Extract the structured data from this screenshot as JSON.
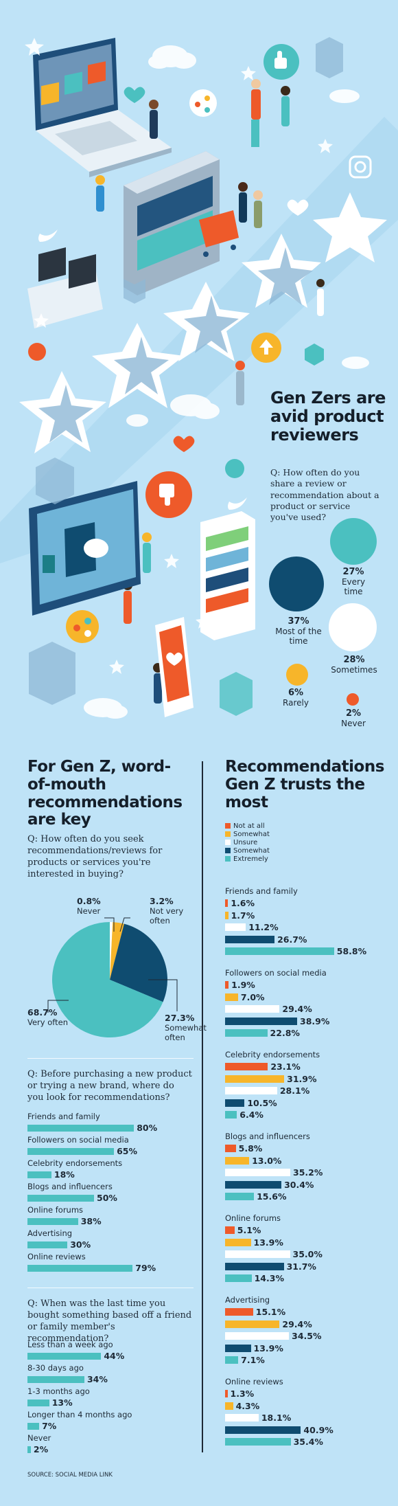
{
  "colors": {
    "background": "#bfe3f7",
    "dark_blue": "#0f4c70",
    "teal": "#4bc0c0",
    "orange": "#ee5a2a",
    "yellow": "#f7b52a",
    "white": "#ffffff"
  },
  "hero": {
    "title": "Gen Zers are avid product reviewers",
    "question": "Q: How often do you share a review or recommendation about a product or service you've used?"
  },
  "left": {
    "title": "For Gen Z, word-of-mouth recommendations are key",
    "q1": "Q: How often do you seek recommendations/reviews for products or services you're interested in buying?",
    "q2": "Q: Before purchasing a new product or trying a new brand, where do you look for recommendations?",
    "q3": "Q: When was the last time you bought something based off a friend or family member's recommendation?"
  },
  "right": {
    "title": "Recommendations Gen Z trusts the most"
  },
  "source": "SOURCE: SOCIAL MEDIA LINK",
  "chart_data": [
    {
      "type": "bubble",
      "title": "Gen Zers are avid product reviewers",
      "categories": [
        "Every time",
        "Most of the time",
        "Sometimes",
        "Rarely",
        "Never"
      ],
      "values": [
        27,
        37,
        28,
        6,
        2
      ],
      "labels": [
        "27%",
        "37%",
        "28%",
        "6%",
        "2%"
      ]
    },
    {
      "type": "pie",
      "title": "For Gen Z, word-of-mouth recommendations are key",
      "categories": [
        "Never",
        "Not very often",
        "Somewhat often",
        "Very often"
      ],
      "values": [
        0.8,
        3.2,
        27.3,
        68.7
      ],
      "labels": [
        "0.8%",
        "3.2%",
        "27.3%",
        "68.7%"
      ]
    },
    {
      "type": "bar",
      "categories": [
        "Friends and family",
        "Followers on social media",
        "Celebrity endorsements",
        "Blogs and influencers",
        "Online forums",
        "Advertising",
        "Online reviews"
      ],
      "values": [
        80,
        65,
        18,
        50,
        38,
        30,
        79
      ],
      "labels": [
        "80%",
        "65%",
        "18%",
        "50%",
        "38%",
        "30%",
        "79%"
      ],
      "xlim": [
        0,
        100
      ]
    },
    {
      "type": "bar",
      "categories": [
        "Less than a week ago",
        "8-30 days ago",
        "1-3 months ago",
        "Longer than 4 months ago",
        "Never"
      ],
      "values": [
        44,
        34,
        13,
        7,
        2
      ],
      "labels": [
        "44%",
        "34%",
        "13%",
        "7%",
        "2%"
      ],
      "xlim": [
        0,
        100
      ]
    },
    {
      "type": "bar",
      "title": "Recommendations Gen Z trusts the most",
      "legend": [
        "Not at all",
        "Somewhat",
        "Unsure",
        "Somewhat",
        "Extremely"
      ],
      "legend_colors": [
        "#ee5a2a",
        "#f7b52a",
        "#ffffff",
        "#0f4c70",
        "#4bc0c0"
      ],
      "groups": [
        {
          "name": "Friends and family",
          "values": [
            1.6,
            1.7,
            11.2,
            26.7,
            58.8
          ],
          "labels": [
            "1.6%",
            "1.7%",
            "11.2%",
            "26.7%",
            "58.8%"
          ]
        },
        {
          "name": "Followers on social media",
          "values": [
            1.9,
            7.0,
            29.4,
            38.9,
            22.8
          ],
          "labels": [
            "1.9%",
            "7.0%",
            "29.4%",
            "38.9%",
            "22.8%"
          ]
        },
        {
          "name": "Celebrity endorsements",
          "values": [
            23.1,
            31.9,
            28.1,
            10.5,
            6.4
          ],
          "labels": [
            "23.1%",
            "31.9%",
            "28.1%",
            "10.5%",
            "6.4%"
          ]
        },
        {
          "name": "Blogs and influencers",
          "values": [
            5.8,
            13.0,
            35.2,
            30.4,
            15.6
          ],
          "labels": [
            "5.8%",
            "13.0%",
            "35.2%",
            "30.4%",
            "15.6%"
          ]
        },
        {
          "name": "Online forums",
          "values": [
            5.1,
            13.9,
            35.0,
            31.7,
            14.3
          ],
          "labels": [
            "5.1%",
            "13.9%",
            "35.0%",
            "31.7%",
            "14.3%"
          ]
        },
        {
          "name": "Advertising",
          "values": [
            15.1,
            29.4,
            34.5,
            13.9,
            7.1
          ],
          "labels": [
            "15.1%",
            "29.4%",
            "34.5%",
            "13.9%",
            "7.1%"
          ]
        },
        {
          "name": "Online reviews",
          "values": [
            1.3,
            4.3,
            18.1,
            40.9,
            35.4
          ],
          "labels": [
            "1.3%",
            "4.3%",
            "18.1%",
            "40.9%",
            "35.4%"
          ]
        }
      ]
    }
  ]
}
